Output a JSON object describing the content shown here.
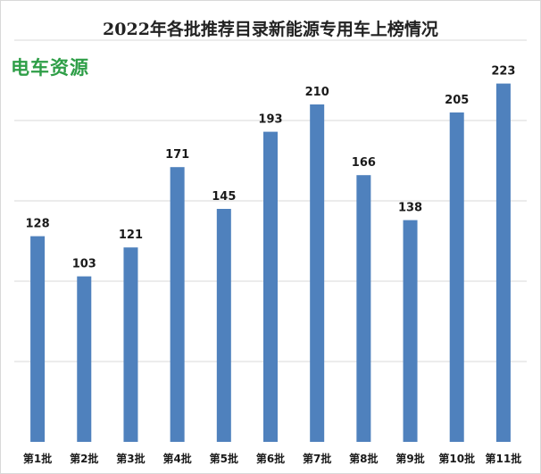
{
  "title": "2022年各批推荐目录新能源专用车上榜情况",
  "logo": {
    "text": "电车资源"
  },
  "colors": {
    "bar": "#4f81bd",
    "grid": "#d9d9d9"
  },
  "chart_data": {
    "type": "bar",
    "title": "2022年各批推荐目录新能源专用车上榜情况",
    "categories": [
      "第1批",
      "第2批",
      "第3批",
      "第4批",
      "第5批",
      "第6批",
      "第7批",
      "第8批",
      "第9批",
      "第10批",
      "第11批"
    ],
    "values": [
      128,
      103,
      121,
      171,
      145,
      193,
      210,
      166,
      138,
      205,
      223
    ],
    "xlabel": "",
    "ylabel": "",
    "ylim": [
      0,
      250
    ],
    "grid": true,
    "legend": "none"
  }
}
